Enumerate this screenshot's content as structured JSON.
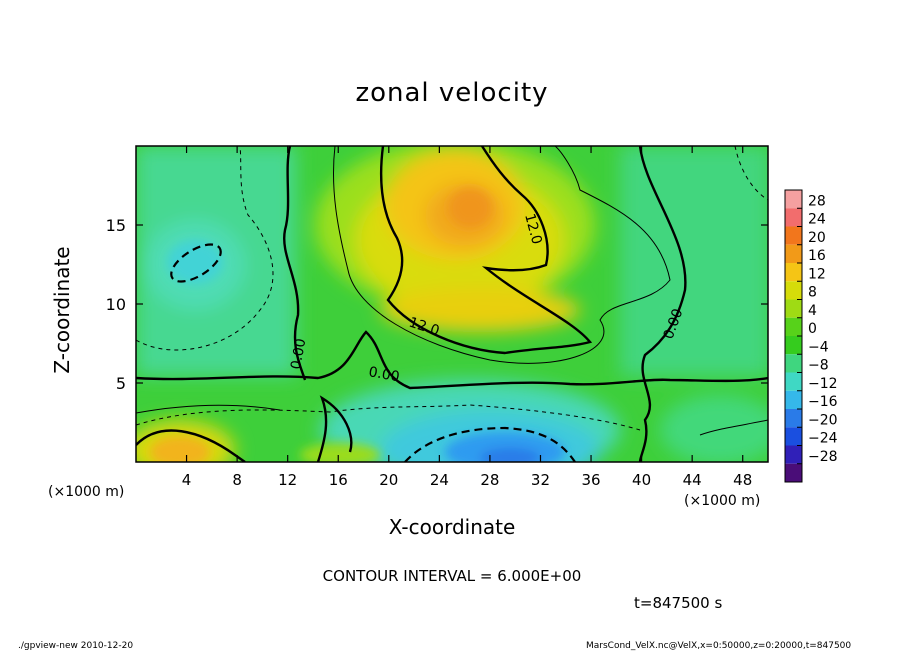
{
  "chart_data": {
    "type": "heatmap",
    "title": "zonal velocity",
    "xlabel": "X-coordinate",
    "ylabel": "Z-coordinate",
    "x_unit": "(×1000 m)",
    "z_unit": "(×1000 m)",
    "xlim": [
      0,
      50
    ],
    "ylim": [
      0,
      20
    ],
    "x_ticks": [
      4,
      8,
      12,
      16,
      20,
      24,
      28,
      32,
      36,
      40,
      44,
      48
    ],
    "y_ticks": [
      5,
      10,
      15
    ],
    "colorbar_ticks": [
      28,
      24,
      20,
      16,
      12,
      8,
      4,
      0,
      -4,
      -8,
      -12,
      -16,
      -20,
      -24,
      -28
    ],
    "contour_labels": [
      "12.0",
      "12.0",
      "0.00",
      "0.00",
      "0.00"
    ],
    "contour_interval": "CONTOUR INTERVAL = 6.000E+00",
    "time": "t=847500 s"
  },
  "footer": {
    "left": "./gpview-new  2010-12-20",
    "right": "MarsCond_VelX.nc@VelX,x=0:50000,z=0:20000,t=847500"
  },
  "colors": {
    "max": "#f26d6d",
    "pos_high": "#f29a18",
    "pos_mid": "#f7d800",
    "zero": "#35cc1e",
    "neg_mid": "#35d8c8",
    "neg_high": "#1a58e0",
    "min": "#4a0d78"
  }
}
